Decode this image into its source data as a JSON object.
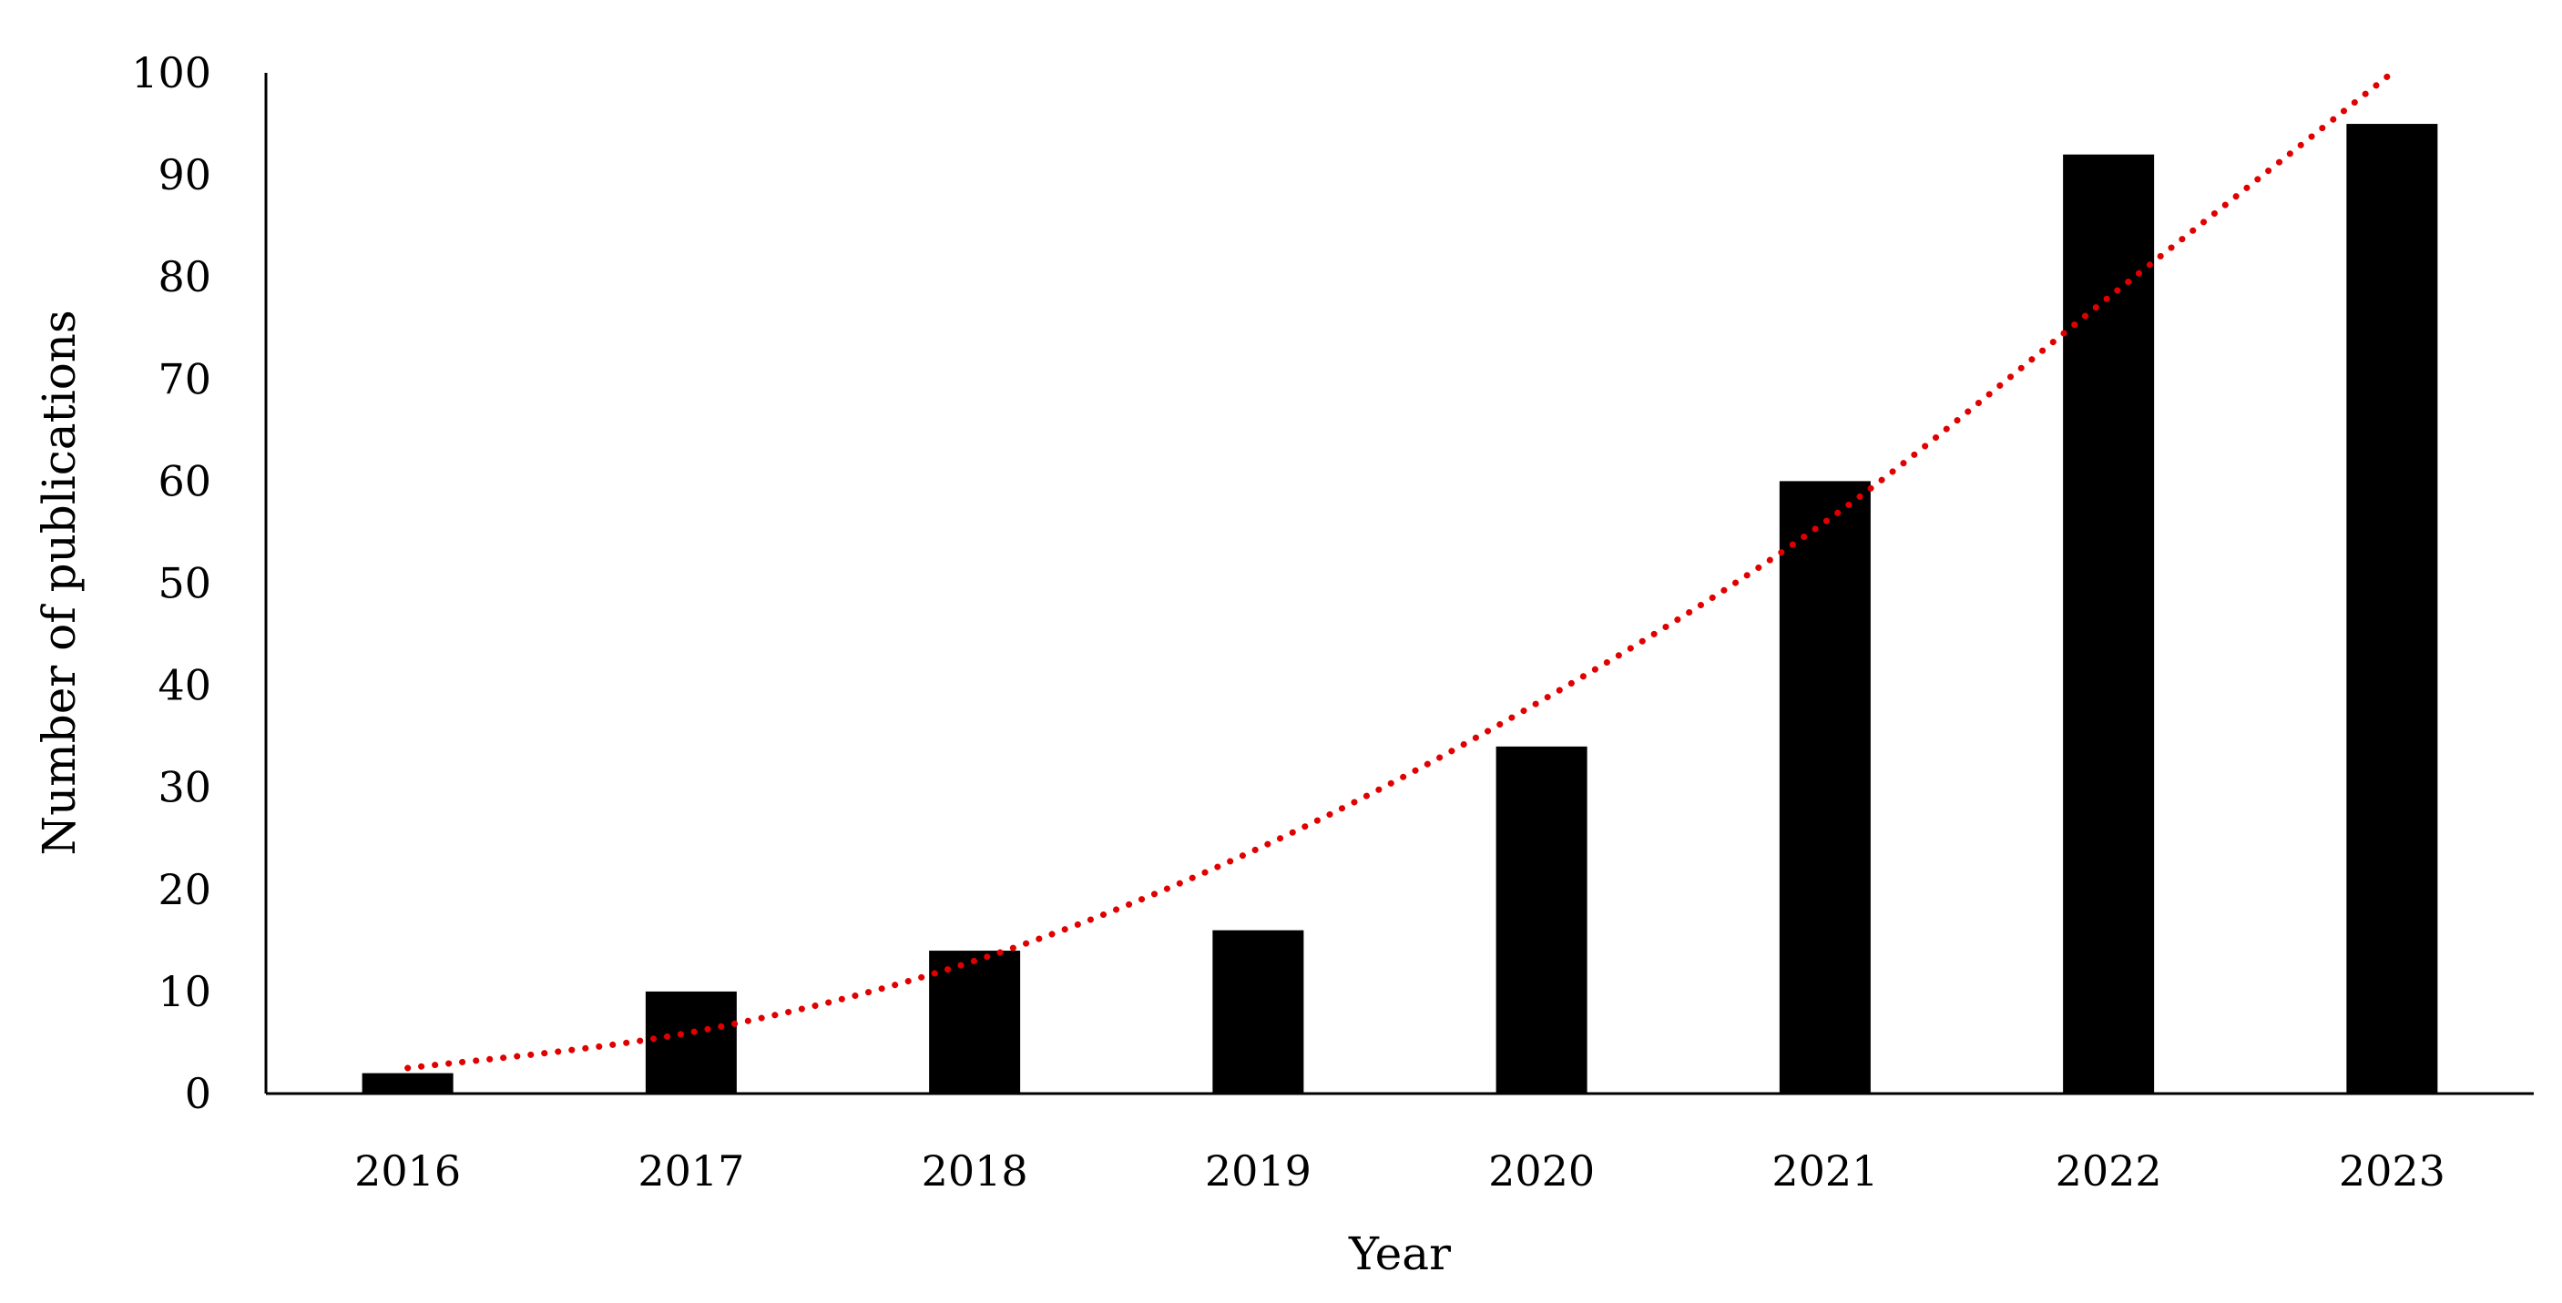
{
  "chart_data": {
    "type": "bar",
    "title": "",
    "xlabel": "Year",
    "ylabel": "Number of publications",
    "categories": [
      "2016",
      "2017",
      "2018",
      "2019",
      "2020",
      "2021",
      "2022",
      "2023"
    ],
    "series": [
      {
        "values": [
          2,
          10,
          14,
          16,
          34,
          60,
          92,
          95
        ],
        "color": "#000000"
      }
    ],
    "trendline": {
      "type": "polynomial",
      "style": "dotted",
      "color": "#e00000",
      "values": [
        2.5,
        6.0,
        13.0,
        24.0,
        38.5,
        56.0,
        78.0,
        100.0
      ]
    },
    "ylim": [
      0,
      100
    ],
    "yticks": [
      "0",
      "10",
      "20",
      "30",
      "40",
      "50",
      "60",
      "70",
      "80",
      "90",
      "100"
    ],
    "grid": false,
    "legend": "none"
  }
}
